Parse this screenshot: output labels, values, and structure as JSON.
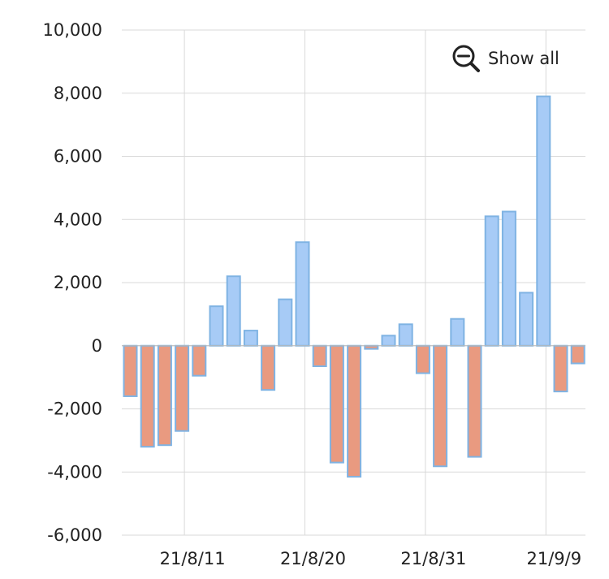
{
  "controls": {
    "show_all_label": "Show all",
    "show_all_icon": "zoom-out-icon"
  },
  "colors": {
    "positive_fill": "#a7cbf6",
    "negative_fill": "#e99a80",
    "bar_stroke": "#7fb3e3",
    "grid": "#d9d9d9"
  },
  "chart_data": {
    "type": "bar",
    "title": "",
    "xlabel": "",
    "ylabel": "",
    "ylim": [
      -6000,
      10000
    ],
    "yticks": [
      10000,
      8000,
      6000,
      4000,
      2000,
      0,
      -2000,
      -4000,
      -6000
    ],
    "ytick_labels": [
      "10,000",
      "8,000",
      "6,000",
      "4,000",
      "2,000",
      "0",
      "-2,000",
      "-4,000",
      "-6,000"
    ],
    "xtick_labels": [
      "21/8/11",
      "21/8/20",
      "21/8/31",
      "21/9/9"
    ],
    "xtick_dates": [
      "2021-08-11",
      "2021-08-20",
      "2021-08-31",
      "2021-09-09"
    ],
    "grid": true,
    "legend": "none",
    "dates": [
      "2021-08-06",
      "2021-08-09",
      "2021-08-10",
      "2021-08-11",
      "2021-08-12",
      "2021-08-13",
      "2021-08-16",
      "2021-08-17",
      "2021-08-18",
      "2021-08-19",
      "2021-08-20",
      "2021-08-23",
      "2021-08-24",
      "2021-08-25",
      "2021-08-26",
      "2021-08-27",
      "2021-08-30",
      "2021-08-31",
      "2021-09-01",
      "2021-09-02",
      "2021-09-03",
      "2021-09-06",
      "2021-09-07",
      "2021-09-08",
      "2021-09-09",
      "2021-09-10",
      "2021-09-13"
    ],
    "values": [
      -1600,
      -3200,
      -3150,
      -2700,
      -950,
      1250,
      2200,
      480,
      -1400,
      1470,
      3280,
      -650,
      -3700,
      -4150,
      -100,
      320,
      680,
      -870,
      -3820,
      850,
      -3520,
      4100,
      4250,
      1680,
      7900,
      -1450,
      -560
    ]
  }
}
